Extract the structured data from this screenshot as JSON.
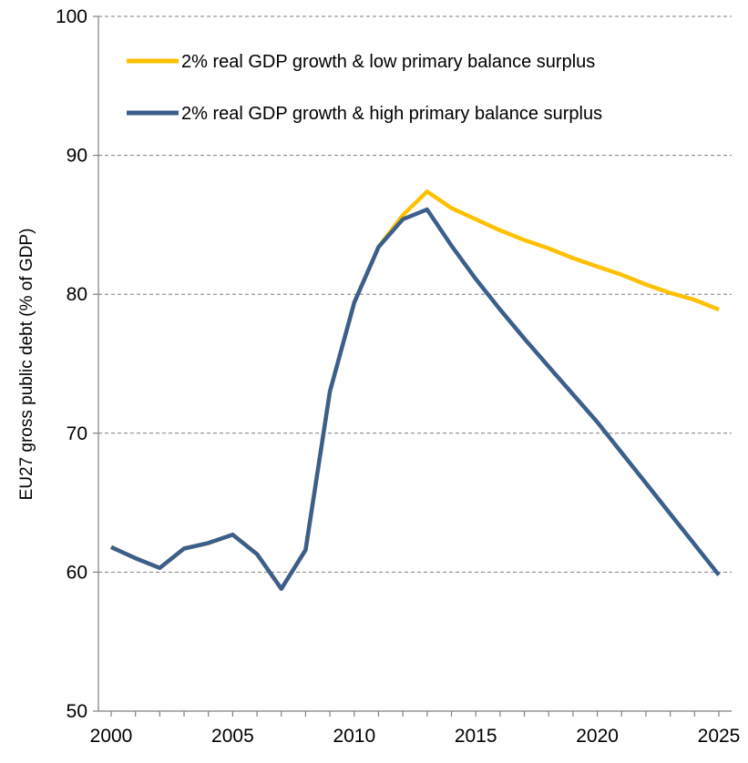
{
  "chart_data": {
    "type": "line",
    "ylabel": "EU27 gross public debt (% of GDP)",
    "xlabel": "",
    "xlim": [
      2000,
      2025
    ],
    "ylim": [
      50,
      100
    ],
    "yticks": [
      50,
      60,
      70,
      80,
      90,
      100
    ],
    "xticks": [
      2000,
      2005,
      2010,
      2015,
      2020,
      2025
    ],
    "grid": "horizontal dashed",
    "legend_position": "top-right",
    "x": [
      2000,
      2001,
      2002,
      2003,
      2004,
      2005,
      2006,
      2007,
      2008,
      2009,
      2010,
      2011,
      2012,
      2013,
      2014,
      2015,
      2016,
      2017,
      2018,
      2019,
      2020,
      2021,
      2022,
      2023,
      2024,
      2025
    ],
    "series": [
      {
        "name": "2% real GDP growth &  low primary balance surplus",
        "color": "#FFC000",
        "values": [
          61.8,
          61.0,
          60.3,
          61.7,
          62.1,
          62.7,
          61.3,
          58.8,
          61.6,
          73.0,
          79.4,
          83.4,
          85.7,
          87.4,
          86.2,
          85.4,
          84.6,
          83.9,
          83.3,
          82.6,
          82.0,
          81.4,
          80.7,
          80.1,
          79.6,
          78.9
        ]
      },
      {
        "name": "2% real GDP growth & high primary balance surplus",
        "color": "#3B5F8C",
        "values": [
          61.8,
          61.0,
          60.3,
          61.7,
          62.1,
          62.7,
          61.3,
          58.8,
          61.6,
          73.0,
          79.4,
          83.4,
          85.4,
          86.1,
          83.5,
          81.1,
          78.9,
          76.8,
          74.8,
          72.8,
          70.8,
          68.6,
          66.4,
          64.2,
          62.0,
          59.8
        ]
      }
    ]
  }
}
